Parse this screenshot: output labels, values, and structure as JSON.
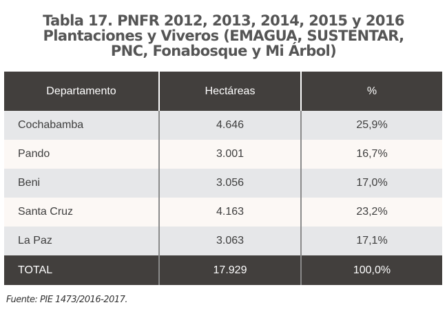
{
  "title": {
    "line1": "Tabla 17. PNFR 2012, 2013, 2014, 2015 y 2016",
    "line2": "Plantaciones y Viveros (EMAGUA, SUSTENTAR,",
    "line3": "PNC, Fonabosque y Mi Árbol)"
  },
  "table": {
    "headers": [
      "Departamento",
      "Hectáreas",
      "%"
    ],
    "rows": [
      {
        "departamento": "Cochabamba",
        "hectareas": "4.646",
        "porcentaje": "25,9%"
      },
      {
        "departamento": "Pando",
        "hectareas": "3.001",
        "porcentaje": "16,7%"
      },
      {
        "departamento": "Beni",
        "hectareas": "3.056",
        "porcentaje": "17,0%"
      },
      {
        "departamento": "Santa Cruz",
        "hectareas": "4.163",
        "porcentaje": "23,2%"
      },
      {
        "departamento": "La Paz",
        "hectareas": "3.063",
        "porcentaje": "17,1%"
      }
    ],
    "total": {
      "departamento": "TOTAL",
      "hectareas": "17.929",
      "porcentaje": "100,0%"
    }
  },
  "source": "Fuente: PIE 1473/2016-2017.",
  "colors": {
    "header_bg": "#423f3d",
    "row_odd_bg": "#e6e7e9",
    "row_even_bg": "#fcf8f5",
    "title_text": "#555555"
  }
}
